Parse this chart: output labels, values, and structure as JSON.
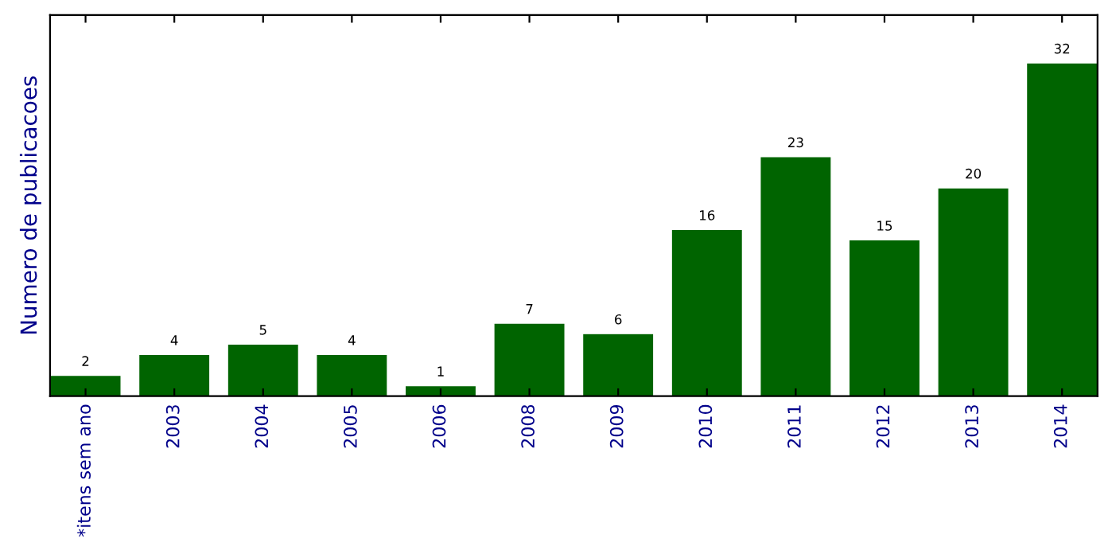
{
  "chart_data": {
    "type": "bar",
    "ylabel": "Numero de publicacoes",
    "categories": [
      "*itens sem ano",
      "2003",
      "2004",
      "2005",
      "2006",
      "2008",
      "2009",
      "2010",
      "2011",
      "2012",
      "2013",
      "2014"
    ],
    "values": [
      2,
      4,
      5,
      4,
      1,
      7,
      6,
      16,
      23,
      15,
      20,
      32
    ],
    "color": "#006400",
    "data_labels": true,
    "ylim": [
      0,
      36.6
    ],
    "tick_labels": "x",
    "grid": false,
    "legend": false
  }
}
